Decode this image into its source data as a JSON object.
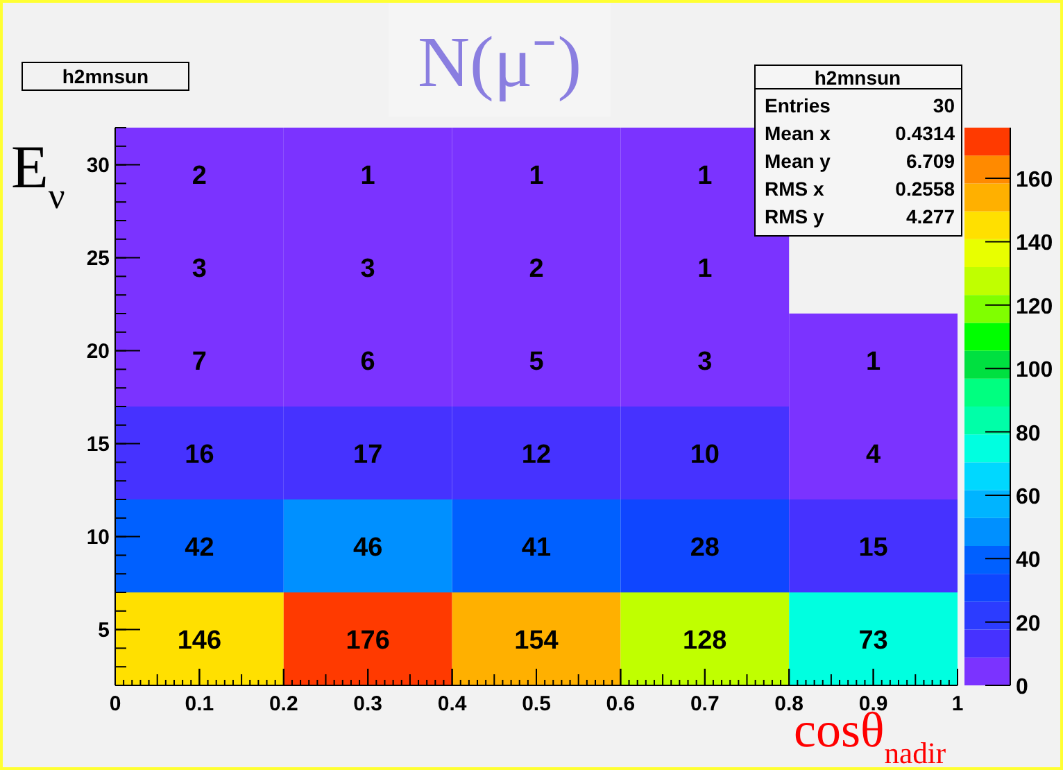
{
  "chart_data": {
    "type": "heatmap",
    "title": "N(μ⁻)",
    "xlabel": "cosθ$_{nadir}$",
    "ylabel": "E$_{ν}$",
    "xlim": [
      0,
      1
    ],
    "xticks": [
      0,
      0.1,
      0.2,
      0.3,
      0.4,
      0.5,
      0.6,
      0.7,
      0.8,
      0.9,
      1
    ],
    "ylim": [
      2,
      32
    ],
    "yticks": [
      5,
      10,
      15,
      20,
      25,
      30
    ],
    "cells": [
      [
        2,
        1,
        1,
        1,
        null
      ],
      [
        3,
        3,
        2,
        1,
        null
      ],
      [
        7,
        6,
        5,
        3,
        1
      ],
      [
        16,
        17,
        12,
        10,
        4
      ],
      [
        42,
        46,
        41,
        28,
        15
      ],
      [
        146,
        176,
        154,
        128,
        73
      ]
    ],
    "data_labels": true,
    "clim": [
      0,
      176
    ],
    "cticks": [
      0,
      20,
      40,
      60,
      80,
      100,
      120,
      140,
      160
    ],
    "annotations": [
      "h2mnsun",
      "h2mnsun",
      "Entries",
      "30",
      "Mean x",
      "0.4314",
      "Mean y",
      "6.709",
      "RMS x",
      "0.2558",
      "RMS y",
      "4.277"
    ]
  }
}
